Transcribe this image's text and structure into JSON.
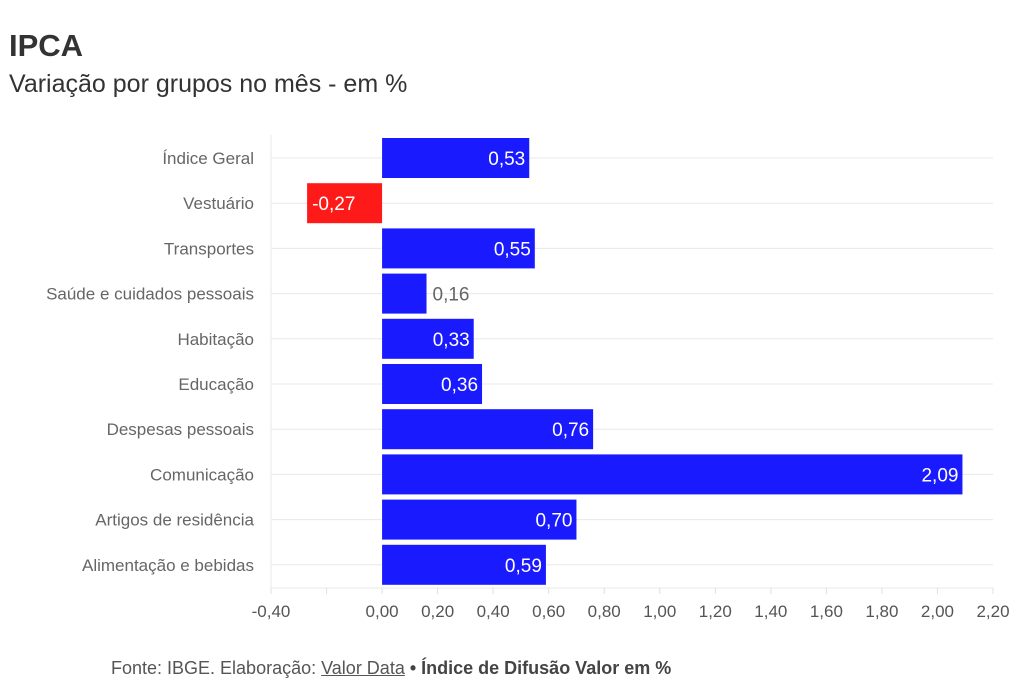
{
  "title": "IPCA",
  "subtitle": "Variação por grupos no mês - em %",
  "footer": {
    "source": "Fonte: IBGE. Elaboração: ",
    "link": "Valor Data",
    "separator": " • ",
    "note": "Índice de Difusão Valor em %"
  },
  "chart_data": {
    "type": "bar",
    "orientation": "horizontal",
    "categories": [
      "Índice Geral",
      "Vestuário",
      "Transportes",
      "Saúde e cuidados pessoais",
      "Habitação",
      "Educação",
      "Despesas pessoais",
      "Comunicação",
      "Artigos de residência",
      "Alimentação e bebidas"
    ],
    "values": [
      0.53,
      -0.27,
      0.55,
      0.16,
      0.33,
      0.36,
      0.76,
      2.09,
      0.7,
      0.59
    ],
    "labels": [
      "0,53",
      "-0,27",
      "0,55",
      "0,16",
      "0,33",
      "0,36",
      "0,76",
      "2,09",
      "0,70",
      "0,59"
    ],
    "xlim": [
      -0.4,
      2.2
    ],
    "xticks": [
      -0.4,
      -0.2,
      0,
      0.2,
      0.4,
      0.6,
      0.8,
      1.0,
      1.2,
      1.4,
      1.6,
      1.8,
      2.0,
      2.2
    ],
    "xtick_labels": [
      "-0,40",
      "",
      "0,00",
      "0,20",
      "0,40",
      "0,60",
      "0,80",
      "1,00",
      "1,20",
      "1,40",
      "1,60",
      "1,80",
      "2,00",
      "2,20"
    ],
    "colors": {
      "positive": "#1a1aff",
      "negative": "#ff1a1a"
    },
    "grid": true
  }
}
